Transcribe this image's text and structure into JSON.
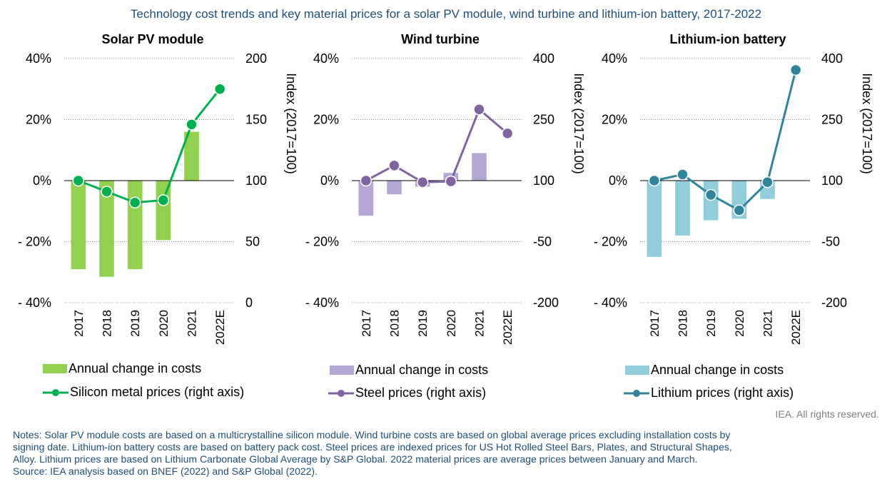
{
  "title": "Technology cost trends and key material prices for a solar PV module, wind turbine and lithium-ion battery, 2017-2022",
  "rights": "IEA. All rights reserved.",
  "notes": [
    "Notes: Solar PV module costs are based on a multicrystalline silicon module. Wind turbine costs are based on global average prices excluding installation costs by",
    "signing date. Lithium-ion battery costs are based on battery pack cost. Steel prices are indexed prices for US Hot Rolled Steel Bars, Plates, and Structural Shapes,",
    "Alloy. Lithium prices are based on Lithium Carbonate Global Average by S&P Global. 2022 material prices are average prices between January and March.",
    "Source: IEA analysis based on BNEF (2022) and S&P Global (2022)."
  ],
  "chart_data": [
    {
      "type": "bar+line",
      "title": "Solar PV module",
      "categories": [
        "2017",
        "2018",
        "2019",
        "2020",
        "2021",
        "2022E"
      ],
      "bar_series": {
        "name": "Annual change in costs",
        "values": [
          -29,
          -31.5,
          -29,
          -19.5,
          16,
          null
        ]
      },
      "line_series": {
        "name": "Silicon metal prices (right axis)",
        "values": [
          100,
          91,
          82,
          84,
          146,
          175
        ]
      },
      "left_axis": {
        "ticks": [
          "40%",
          "20%",
          "0%",
          "- 20%",
          "- 40%"
        ],
        "ylim": [
          -40,
          40
        ]
      },
      "right_axis": {
        "ticks": [
          "200",
          "150",
          "100",
          "50",
          "0"
        ],
        "ylim": [
          0,
          200
        ],
        "label": "Index (2017=100)"
      },
      "bar_color": "#92d050",
      "line_color": "#00b050"
    },
    {
      "type": "bar+line",
      "title": "Wind turbine",
      "categories": [
        "2017",
        "2018",
        "2019",
        "2020",
        "2021",
        "2022E"
      ],
      "bar_series": {
        "name": "Annual change in costs",
        "values": [
          -11.5,
          -4.5,
          -2,
          2.5,
          9,
          null
        ]
      },
      "line_series": {
        "name": "Steel prices (right axis)",
        "values": [
          100,
          137,
          96,
          98,
          275,
          216
        ]
      },
      "left_axis": {
        "ticks": [
          "40%",
          "20%",
          "0%",
          "- 20%",
          "- 40%"
        ],
        "ylim": [
          -40,
          40
        ]
      },
      "right_axis": {
        "ticks": [
          "400",
          "250",
          "100",
          "-50",
          "-200"
        ],
        "ylim": [
          -200,
          400
        ],
        "label": "Index (2017=100)"
      },
      "bar_color": "#b4a7d6",
      "line_color": "#8064a2"
    },
    {
      "type": "bar+line",
      "title": "Lithium-ion battery",
      "categories": [
        "2017",
        "2018",
        "2019",
        "2020",
        "2021",
        "2022E"
      ],
      "bar_series": {
        "name": "Annual change in costs",
        "values": [
          -25,
          -18,
          -13,
          -12.5,
          -6,
          null
        ]
      },
      "line_series": {
        "name": "Lithium prices (right axis)",
        "values": [
          100,
          115,
          65,
          27,
          96,
          372
        ]
      },
      "left_axis": {
        "ticks": [
          "40%",
          "20%",
          "0%",
          "- 20%",
          "- 40%"
        ],
        "ylim": [
          -40,
          40
        ]
      },
      "right_axis": {
        "ticks": [
          "400",
          "250",
          "100",
          "-50",
          "-200"
        ],
        "ylim": [
          -200,
          400
        ],
        "label": "Index (2017=100)"
      },
      "bar_color": "#92cddc",
      "line_color": "#31849b"
    }
  ]
}
